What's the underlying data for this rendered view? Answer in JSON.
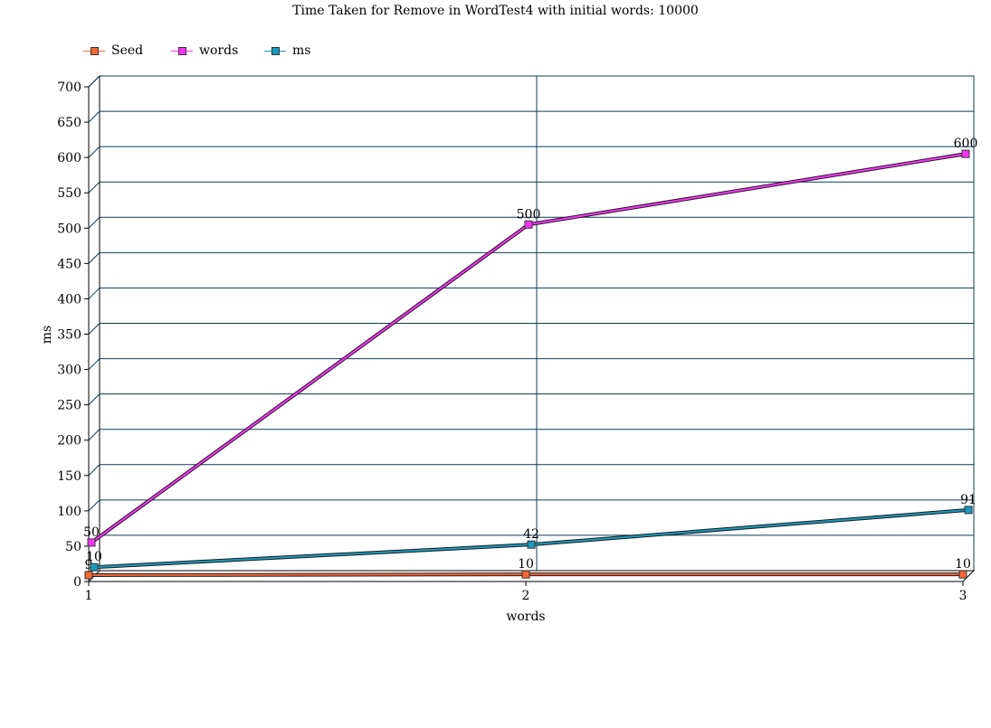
{
  "chart_data": {
    "type": "line",
    "title": "Time Taken for Remove in WordTest4 with initial words: 10000",
    "xlabel": "words",
    "ylabel": "ms",
    "categories": [
      "1",
      "2",
      "3"
    ],
    "ylim": [
      0,
      700
    ],
    "yticks": [
      0,
      50,
      100,
      150,
      200,
      250,
      300,
      350,
      400,
      450,
      500,
      550,
      600,
      650,
      700
    ],
    "grid": true,
    "legend_position": "top-left",
    "series": [
      {
        "name": "Seed",
        "values": [
          9,
          10,
          10
        ],
        "labels": [
          "9",
          "10",
          "10"
        ],
        "color": "#ff6633"
      },
      {
        "name": "words",
        "values": [
          50,
          500,
          600
        ],
        "labels": [
          "50",
          "500",
          "600"
        ],
        "color": "#ff33ff"
      },
      {
        "name": "ms",
        "values": [
          10,
          42,
          91
        ],
        "labels": [
          "10",
          "42",
          "91"
        ],
        "color": "#1a9ac0"
      }
    ]
  }
}
